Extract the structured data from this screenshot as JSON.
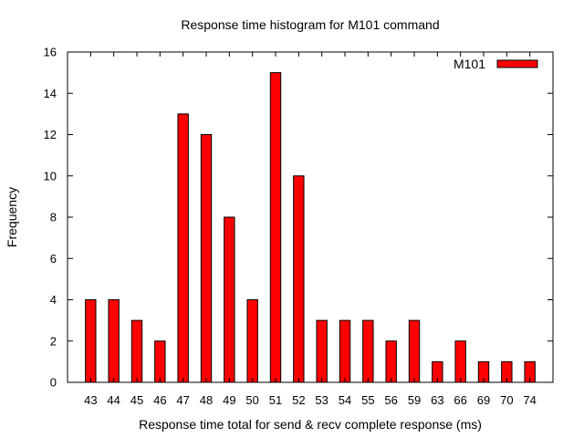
{
  "chart_data": {
    "type": "bar",
    "title": "Response time histogram for M101 command",
    "xlabel": "Response time total for send & recv complete response (ms)",
    "ylabel": "Frequency",
    "categories": [
      "43",
      "44",
      "45",
      "46",
      "47",
      "48",
      "49",
      "50",
      "51",
      "52",
      "53",
      "54",
      "55",
      "56",
      "59",
      "63",
      "66",
      "69",
      "70",
      "74"
    ],
    "series": [
      {
        "name": "M101",
        "color": "#ff0000",
        "values": [
          4,
          4,
          3,
          2,
          13,
          12,
          8,
          4,
          15,
          10,
          3,
          3,
          3,
          2,
          3,
          1,
          2,
          1,
          1,
          1
        ]
      }
    ],
    "ylim": [
      0,
      16
    ],
    "yticks": [
      "0",
      "2",
      "4",
      "6",
      "8",
      "10",
      "12",
      "14",
      "16"
    ],
    "grid": false,
    "legend": "top-right"
  }
}
